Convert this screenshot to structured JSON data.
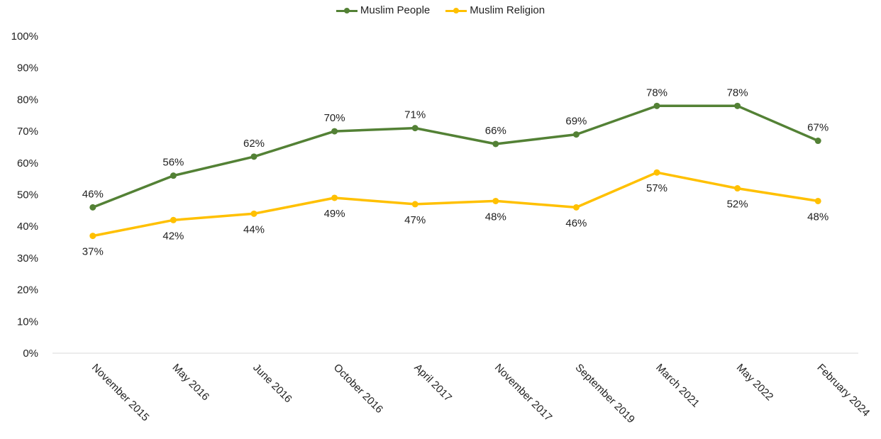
{
  "chart_data": {
    "type": "line",
    "title": "",
    "xlabel": "",
    "ylabel": "",
    "categories": [
      "November 2015",
      "May 2016",
      "June 2016",
      "October 2016",
      "April 2017",
      "November 2017",
      "September 2019",
      "March 2021",
      "May 2022",
      "February 2024"
    ],
    "ylim": [
      0,
      100
    ],
    "yticks": [
      0,
      10,
      20,
      30,
      40,
      50,
      60,
      70,
      80,
      90,
      100
    ],
    "ytick_labels": [
      "0%",
      "10%",
      "20%",
      "30%",
      "40%",
      "50%",
      "60%",
      "70%",
      "80%",
      "90%",
      "100%"
    ],
    "grid": false,
    "legend_position": "top-center",
    "series": [
      {
        "name": "Muslim People",
        "color": "#538135",
        "values": [
          46,
          56,
          62,
          70,
          71,
          66,
          69,
          78,
          78,
          67
        ],
        "labels": [
          "46%",
          "56%",
          "62%",
          "70%",
          "71%",
          "66%",
          "69%",
          "78%",
          "78%",
          "67%"
        ],
        "label_position": "above"
      },
      {
        "name": "Muslim Religion",
        "color": "#FFC000",
        "values": [
          37,
          42,
          44,
          49,
          47,
          48,
          46,
          57,
          52,
          48
        ],
        "labels": [
          "37%",
          "42%",
          "44%",
          "49%",
          "47%",
          "48%",
          "46%",
          "57%",
          "52%",
          "48%"
        ],
        "label_position": "below"
      }
    ]
  }
}
